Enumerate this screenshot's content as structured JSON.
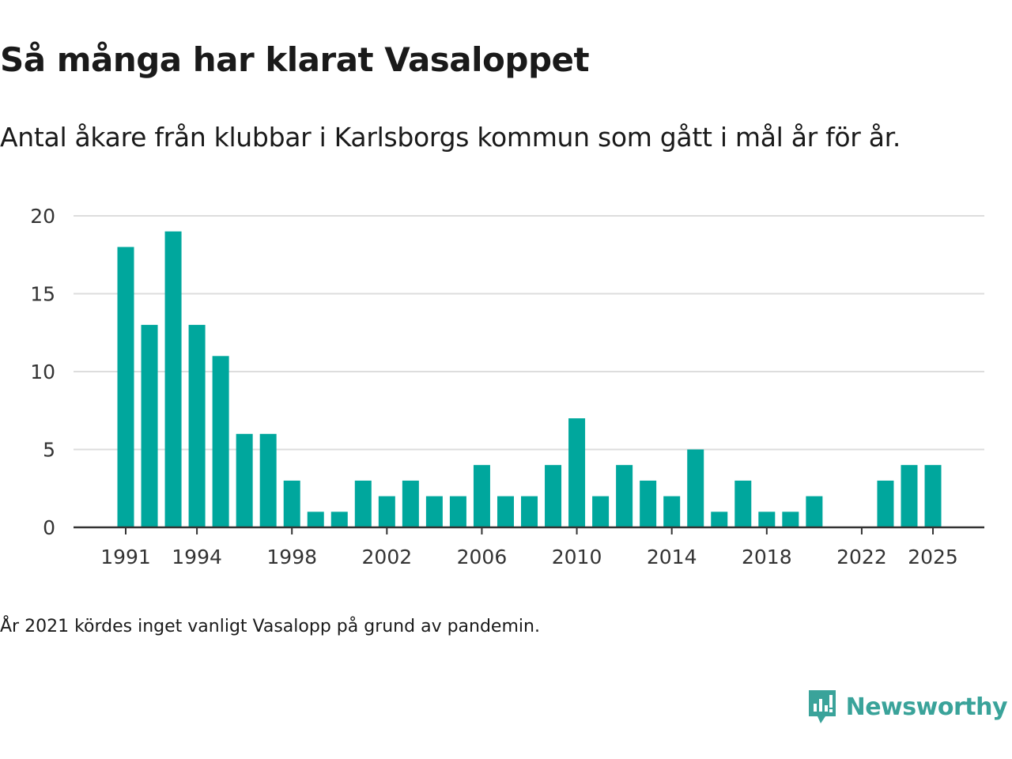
{
  "title": "Så många har klarat Vasaloppet",
  "subtitle": "Antal åkare från klubbar i Karlsborgs kommun som gått i mål år för år.",
  "note": "År 2021 kördes inget vanligt Vasalopp på grund av pandemin.",
  "brand": {
    "name": "Newsworthy",
    "logo_icon": "newsworthy-logo-icon",
    "color": "#3aa39a"
  },
  "colors": {
    "bar": "#00a79d",
    "grid": "#dddddd",
    "axis": "#333333"
  },
  "chart_data": {
    "type": "bar",
    "title": "Så många har klarat Vasaloppet",
    "xlabel": "",
    "ylabel": "",
    "ylim": [
      0,
      20
    ],
    "y_ticks": [
      "0",
      "5",
      "10",
      "15",
      "20"
    ],
    "x_tick_labels": [
      "1991",
      "1994",
      "1998",
      "2002",
      "2006",
      "2010",
      "2014",
      "2018",
      "2022",
      "2025"
    ],
    "grid": true,
    "categories": [
      1991,
      1992,
      1993,
      1994,
      1995,
      1996,
      1997,
      1998,
      1999,
      2000,
      2001,
      2002,
      2003,
      2004,
      2005,
      2006,
      2007,
      2008,
      2009,
      2010,
      2011,
      2012,
      2013,
      2014,
      2015,
      2016,
      2017,
      2018,
      2019,
      2020,
      2021,
      2022,
      2023,
      2024,
      2025
    ],
    "values": [
      18,
      13,
      19,
      13,
      11,
      6,
      6,
      3,
      1,
      1,
      3,
      2,
      3,
      2,
      2,
      4,
      2,
      2,
      4,
      7,
      2,
      4,
      3,
      2,
      5,
      1,
      3,
      1,
      1,
      2,
      null,
      0,
      3,
      4,
      4
    ]
  }
}
